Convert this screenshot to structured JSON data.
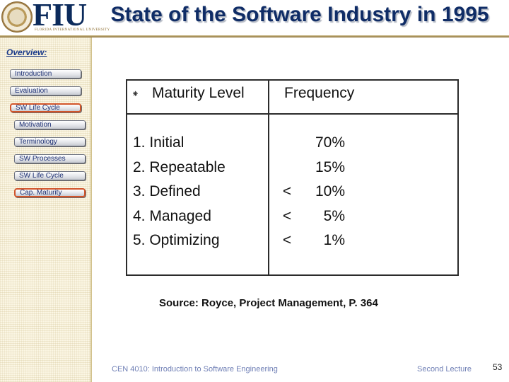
{
  "header": {
    "logo_text": "FIU",
    "logo_caption": "FLORIDA INTERNATIONAL UNIVERSITY",
    "title": "State of the Software Industry in 1995"
  },
  "sidebar": {
    "heading": "Overview:",
    "items": [
      {
        "label": "Introduction",
        "active": false
      },
      {
        "label": "Evaluation",
        "active": false
      },
      {
        "label": "SW Life Cycle",
        "active": true
      },
      {
        "label": "Motivation",
        "active": false
      },
      {
        "label": "Terminology",
        "active": false
      },
      {
        "label": "SW Processes",
        "active": false
      },
      {
        "label": "SW Life Cycle",
        "active": false
      },
      {
        "label": "Cap. Maturity",
        "active": true
      }
    ]
  },
  "table": {
    "bullet": "⁕",
    "column_level": "Maturity Level",
    "column_frequency": "Frequency",
    "rows": [
      {
        "level": "1. Initial",
        "mark": "",
        "frequency": "70%"
      },
      {
        "level": "2. Repeatable",
        "mark": "",
        "frequency": "15%"
      },
      {
        "level": "3. Defined",
        "mark": "<",
        "frequency": "10%"
      },
      {
        "level": "4. Managed",
        "mark": "<",
        "frequency": "5%"
      },
      {
        "level": "5. Optimizing",
        "mark": "<",
        "frequency": "1%"
      }
    ]
  },
  "source": "Source: Royce, Project Management, P. 364",
  "footer": {
    "course": "CEN 4010: Introduction to Software Engineering",
    "lecture": "Second Lecture",
    "page_number": "53"
  },
  "colors": {
    "title": "#0f2c66",
    "active_outline": "#d2552a",
    "sidebar_background": "#fbf6e4",
    "footer_text": "#6f7fb5"
  }
}
